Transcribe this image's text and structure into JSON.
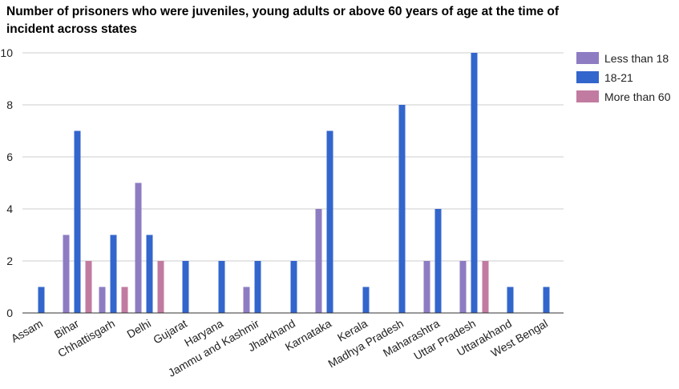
{
  "chart_data": {
    "type": "bar",
    "title": "Number of prisoners who were juveniles, young adults or above 60 years of age at the time of incident across states",
    "xlabel": "",
    "ylabel": "",
    "ylim": [
      0,
      10
    ],
    "yticks": [
      "0",
      "2",
      "4",
      "6",
      "8",
      "10"
    ],
    "grid": true,
    "legend_position": "right",
    "categories": [
      "Assam",
      "Bihar",
      "Chhattisgarh",
      "Delhi",
      "Gujarat",
      "Haryana",
      "Jammu and Kashmir",
      "Jharkhand",
      "Karnataka",
      "Kerala",
      "Madhya Pradesh",
      "Maharashtra",
      "Uttar Pradesh",
      "Uttarakhand",
      "West Bengal"
    ],
    "series": [
      {
        "name": "Less than 18",
        "color": "#8e7cc3",
        "values": [
          0,
          3,
          1,
          5,
          0,
          0,
          1,
          0,
          4,
          0,
          0,
          2,
          2,
          0,
          0
        ]
      },
      {
        "name": "18-21",
        "color": "#3366cc",
        "values": [
          1,
          7,
          3,
          3,
          2,
          2,
          2,
          2,
          7,
          1,
          8,
          4,
          10,
          1,
          1
        ]
      },
      {
        "name": "More than 60",
        "color": "#c27ba0",
        "values": [
          0,
          2,
          1,
          2,
          0,
          0,
          0,
          0,
          0,
          0,
          0,
          0,
          2,
          0,
          0
        ]
      }
    ]
  }
}
